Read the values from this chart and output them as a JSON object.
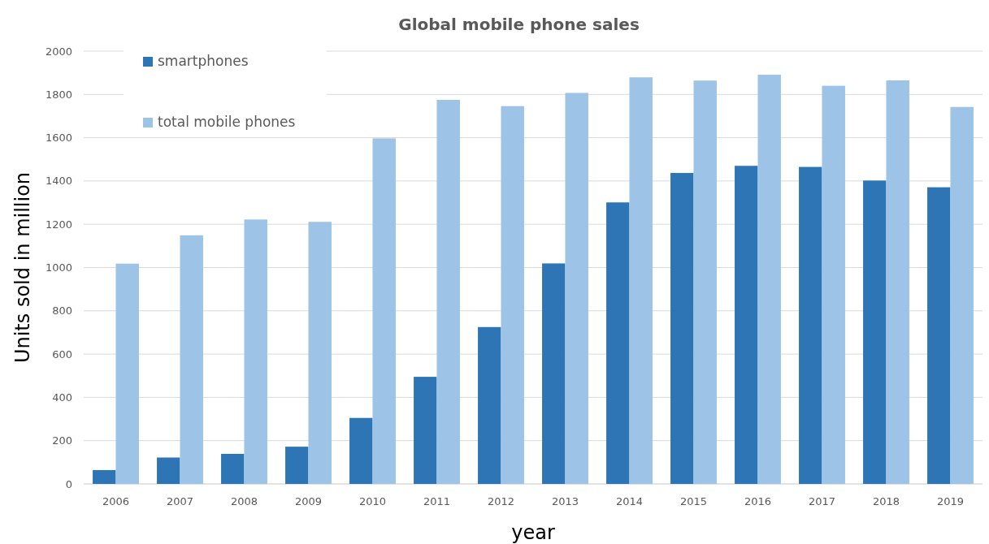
{
  "chart_data": {
    "type": "bar",
    "title": "Global mobile phone sales",
    "xlabel": "year",
    "ylabel": "Units sold in million",
    "categories": [
      "2006",
      "2007",
      "2008",
      "2009",
      "2010",
      "2011",
      "2012",
      "2013",
      "2014",
      "2015",
      "2016",
      "2017",
      "2018",
      "2019"
    ],
    "series": [
      {
        "name": "smartphones",
        "color": "#2e75b6",
        "values": [
          64,
          122,
          139,
          172,
          305,
          495,
          725,
          1019,
          1301,
          1437,
          1470,
          1465,
          1402,
          1371
        ]
      },
      {
        "name": "total mobile phones",
        "color": "#9dc3e6",
        "values": [
          1018,
          1149,
          1222,
          1211,
          1597,
          1775,
          1746,
          1807,
          1879,
          1864,
          1891,
          1840,
          1865,
          1742
        ]
      }
    ],
    "ylim": [
      0,
      2000
    ],
    "yticks": [
      0,
      200,
      400,
      600,
      800,
      1000,
      1200,
      1400,
      1600,
      1800,
      2000
    ],
    "grid": "y",
    "legend": "top left"
  }
}
